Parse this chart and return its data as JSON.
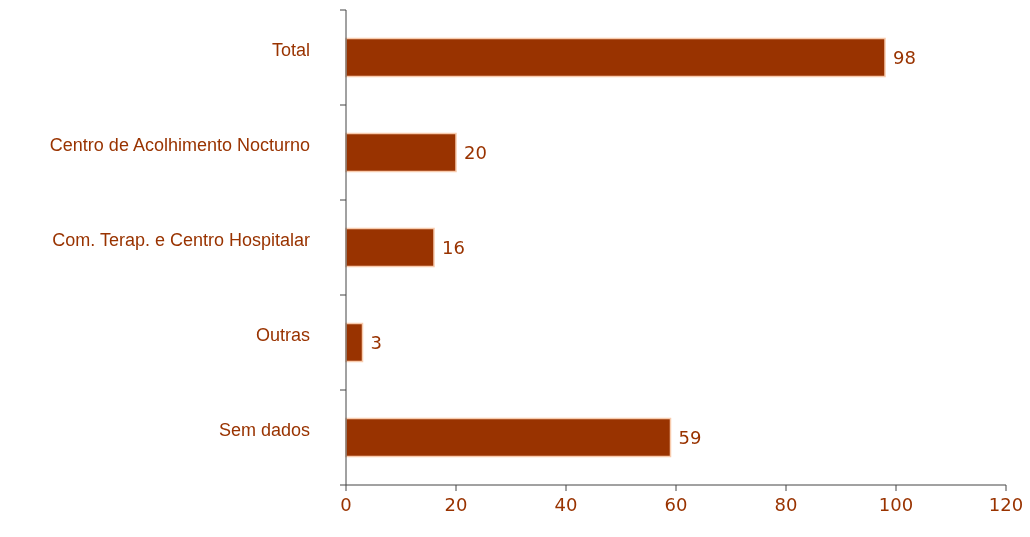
{
  "chart_data": {
    "type": "bar",
    "orientation": "horizontal",
    "categories": [
      "Total",
      "Centro de Acolhimento Nocturno",
      "Com. Terap. e Centro Hospitalar",
      "Outras",
      "Sem dados"
    ],
    "values": [
      98,
      20,
      16,
      3,
      59
    ],
    "color": "#993300",
    "xlim": [
      0,
      120
    ],
    "xticks": [
      0,
      20,
      40,
      60,
      80,
      100,
      120
    ],
    "data_labels": true
  }
}
